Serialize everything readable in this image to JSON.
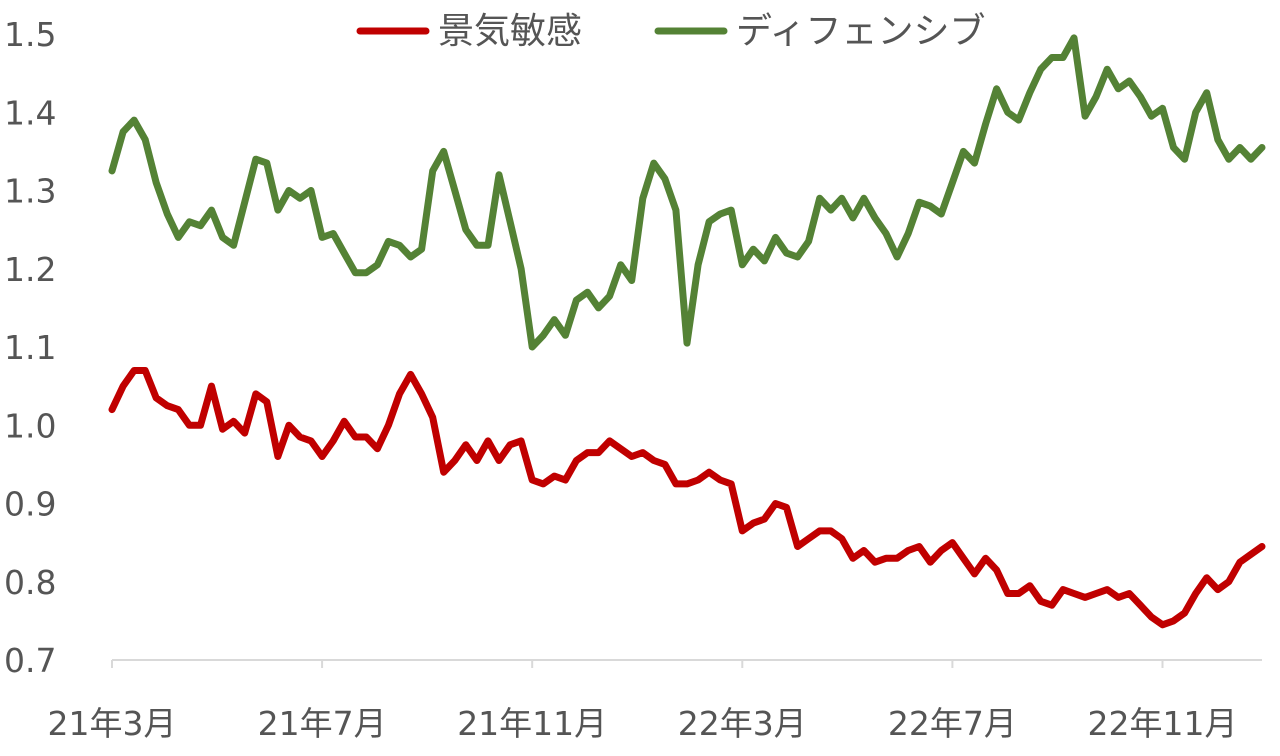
{
  "chart_data": {
    "type": "line",
    "title": "",
    "xlabel": "",
    "ylabel": "",
    "ylim": [
      0.7,
      1.5
    ],
    "yticks": [
      "0.7",
      "0.8",
      "0.9",
      "1.0",
      "1.1",
      "1.2",
      "1.3",
      "1.4",
      "1.5"
    ],
    "xticks": [
      "21年3月",
      "21年7月",
      "21年11月",
      "22年3月",
      "22年7月",
      "22年11月"
    ],
    "grid": false,
    "legend": "top-center",
    "series": [
      {
        "name": "景気敏感",
        "color": "#C00000",
        "values": [
          1.02,
          1.05,
          1.07,
          1.07,
          1.035,
          1.025,
          1.02,
          1.0,
          1.0,
          1.05,
          0.995,
          1.005,
          0.99,
          1.04,
          1.03,
          0.96,
          1.0,
          0.985,
          0.98,
          0.96,
          0.98,
          1.005,
          0.985,
          0.985,
          0.97,
          1.0,
          1.04,
          1.065,
          1.04,
          1.01,
          0.94,
          0.955,
          0.975,
          0.955,
          0.98,
          0.955,
          0.975,
          0.98,
          0.93,
          0.925,
          0.935,
          0.93,
          0.955,
          0.965,
          0.965,
          0.98,
          0.97,
          0.96,
          0.965,
          0.955,
          0.95,
          0.925,
          0.925,
          0.93,
          0.94,
          0.93,
          0.925,
          0.865,
          0.875,
          0.88,
          0.9,
          0.895,
          0.845,
          0.855,
          0.865,
          0.865,
          0.855,
          0.83,
          0.84,
          0.825,
          0.83,
          0.83,
          0.84,
          0.845,
          0.825,
          0.84,
          0.85,
          0.83,
          0.81,
          0.83,
          0.815,
          0.785,
          0.785,
          0.795,
          0.775,
          0.77,
          0.79,
          0.785,
          0.78,
          0.785,
          0.79,
          0.78,
          0.785,
          0.77,
          0.755,
          0.745,
          0.75,
          0.76,
          0.785,
          0.805,
          0.79,
          0.8,
          0.825,
          0.835,
          0.845
        ]
      },
      {
        "name": "ディフェンシブ",
        "color": "#548235",
        "values": [
          1.325,
          1.375,
          1.39,
          1.365,
          1.31,
          1.27,
          1.24,
          1.26,
          1.255,
          1.275,
          1.24,
          1.23,
          1.285,
          1.34,
          1.335,
          1.275,
          1.3,
          1.29,
          1.3,
          1.24,
          1.245,
          1.22,
          1.195,
          1.195,
          1.205,
          1.235,
          1.23,
          1.215,
          1.225,
          1.325,
          1.35,
          1.3,
          1.25,
          1.23,
          1.23,
          1.32,
          1.26,
          1.2,
          1.1,
          1.115,
          1.135,
          1.115,
          1.16,
          1.17,
          1.15,
          1.165,
          1.205,
          1.185,
          1.29,
          1.335,
          1.315,
          1.275,
          1.105,
          1.205,
          1.26,
          1.27,
          1.275,
          1.205,
          1.225,
          1.21,
          1.24,
          1.22,
          1.215,
          1.235,
          1.29,
          1.275,
          1.29,
          1.265,
          1.29,
          1.265,
          1.245,
          1.215,
          1.245,
          1.285,
          1.28,
          1.27,
          1.31,
          1.35,
          1.335,
          1.385,
          1.43,
          1.4,
          1.39,
          1.425,
          1.455,
          1.47,
          1.47,
          1.495,
          1.395,
          1.42,
          1.455,
          1.43,
          1.44,
          1.42,
          1.395,
          1.405,
          1.355,
          1.34,
          1.4,
          1.425,
          1.365,
          1.34,
          1.355,
          1.34,
          1.355
        ]
      }
    ]
  }
}
